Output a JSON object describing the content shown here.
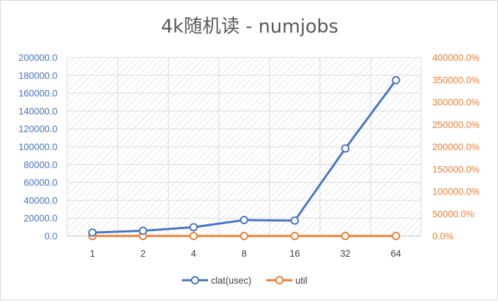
{
  "chart_data": {
    "type": "line",
    "title": "4k随机读 - numjobs",
    "categories": [
      "1",
      "2",
      "4",
      "8",
      "16",
      "32",
      "64"
    ],
    "series": [
      {
        "name": "clat(usec)",
        "axis": "left",
        "color": "#4472c4",
        "values": [
          3800,
          5800,
          9800,
          17800,
          17200,
          98000,
          174500
        ]
      },
      {
        "name": "util",
        "axis": "right",
        "color": "#ed7d31",
        "values": [
          0,
          0,
          0,
          0,
          0,
          0,
          0
        ]
      }
    ],
    "y_left": {
      "range": [
        0,
        200000
      ],
      "ticks": [
        "0.0",
        "20000.0",
        "40000.0",
        "60000.0",
        "80000.0",
        "100000.0",
        "120000.0",
        "140000.0",
        "160000.0",
        "180000.0",
        "200000.0"
      ],
      "color": "#4472c4"
    },
    "y_right": {
      "range": [
        0,
        400000
      ],
      "ticks": [
        "0.0%",
        "50000.0%",
        "100000.0%",
        "150000.0%",
        "200000.0%",
        "250000.0%",
        "300000.0%",
        "350000.0%",
        "400000.0%"
      ],
      "color": "#ed7d31"
    },
    "grid": true,
    "plot_background": "diagonal-hatch",
    "legend": "bottom"
  }
}
